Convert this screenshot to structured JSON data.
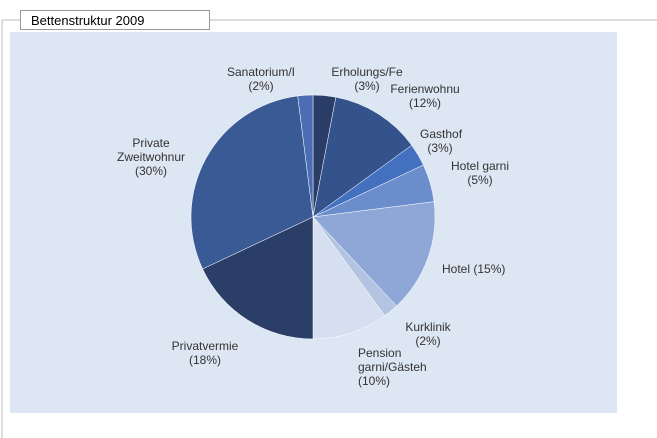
{
  "chart_data": {
    "type": "pie",
    "title": "Bettenstruktur 2009",
    "categories": [
      "Erholungs/Fe",
      "Ferienwohnu",
      "Gasthof",
      "Hotel garni",
      "Hotel",
      "Kurklinik",
      "Pension garni/Gästeh",
      "Privatvermie",
      "Private Zweitwohnur",
      "Sanatorium/I"
    ],
    "values": [
      3,
      12,
      3,
      5,
      15,
      2,
      10,
      18,
      30,
      2
    ],
    "value_labels": [
      "(3%)",
      "(12%)",
      "(3%)",
      "(5%)",
      "(15%)",
      "(2%)",
      "(10%)",
      "(18%)",
      "(30%)",
      "(2%)"
    ],
    "colors": [
      "#2a3d66",
      "#34538d",
      "#4470c0",
      "#6c8dcb",
      "#8ea7d6",
      "#b3c4e3",
      "#d5dff0",
      "#2b3e67",
      "#3a5a95",
      "#4a6db5"
    ]
  }
}
